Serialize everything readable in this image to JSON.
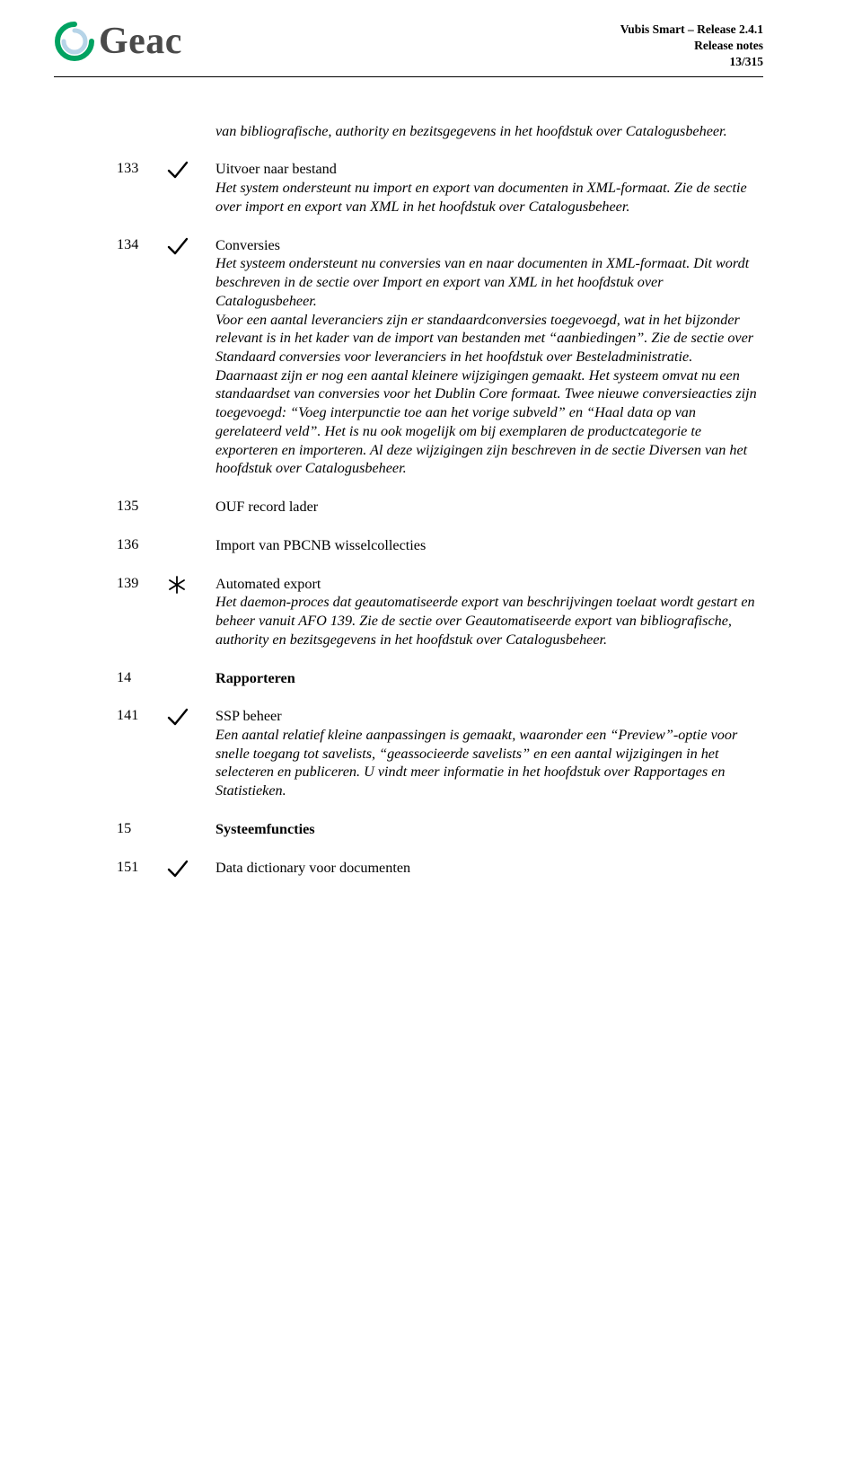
{
  "header": {
    "logo_text": "Geac",
    "meta_line1": "Vubis Smart – Release 2.4.1",
    "meta_line2": "Release notes",
    "meta_line3": "13/315"
  },
  "colors": {
    "text": "#000000",
    "logo_outer": "#00a261",
    "logo_inner": "#b0cfe6",
    "mark_stroke": "#000000",
    "background": "#ffffff"
  },
  "intro": "van bibliografische, authority en bezitsgegevens in het hoofdstuk over Catalogusbeheer.",
  "rows": [
    {
      "num": "133",
      "mark": "check",
      "title": "Uitvoer naar bestand",
      "title_bold": false,
      "desc": "Het system ondersteunt nu import en export van documenten in XML-formaat. Zie de sectie over import en export van XML in het hoofdstuk over Catalogusbeheer."
    },
    {
      "num": "134",
      "mark": "check",
      "title": "Conversies",
      "title_bold": false,
      "desc": "Het systeem ondersteunt nu conversies van en naar documenten in XML-formaat. Dit wordt beschreven in de sectie over Import en export van XML in het hoofdstuk over Catalogusbeheer.\nVoor een aantal leveranciers zijn er standaardconversies toegevoegd, wat in het bijzonder relevant is in het kader van de import van bestanden met “aanbiedingen”. Zie de sectie over Standaard conversies voor leveranciers in het hoofdstuk over Besteladministratie.\nDaarnaast zijn er nog een aantal kleinere wijzigingen gemaakt. Het systeem omvat nu een standaardset van conversies voor het Dublin Core formaat. Twee nieuwe conversieacties zijn toegevoegd: “Voeg interpunctie toe aan het vorige subveld” en “Haal data op van gerelateerd veld”. Het is nu ook mogelijk om bij exemplaren de productcategorie te exporteren en importeren. Al deze wijzigingen zijn beschreven in de sectie Diversen van het hoofdstuk over Catalogusbeheer."
    },
    {
      "num": "135",
      "mark": "",
      "title": "OUF record lader",
      "title_bold": false,
      "desc": ""
    },
    {
      "num": "136",
      "mark": "",
      "title": "Import van PBCNB wisselcollecties",
      "title_bold": false,
      "desc": ""
    },
    {
      "num": "139",
      "mark": "star",
      "title": "Automated export",
      "title_bold": false,
      "desc": "Het daemon-proces dat geautomatiseerde export van beschrijvingen toelaat wordt gestart en beheer vanuit AFO 139. Zie de sectie over Geautomatiseerde export van bibliografische, authority en bezitsgegevens in het hoofdstuk over Catalogusbeheer."
    },
    {
      "num": "14",
      "mark": "",
      "title": "Rapporteren",
      "title_bold": true,
      "desc": ""
    },
    {
      "num": "141",
      "mark": "check",
      "title": "SSP beheer",
      "title_bold": false,
      "desc": "Een aantal relatief kleine aanpassingen is gemaakt, waaronder een “Preview”-optie voor snelle toegang tot savelists, “geassocieerde savelists” en een aantal wijzigingen in het selecteren en publiceren. U vindt meer informatie in het hoofdstuk over Rapportages en Statistieken."
    },
    {
      "num": "15",
      "mark": "",
      "title": "Systeemfuncties",
      "title_bold": true,
      "desc": ""
    },
    {
      "num": "151",
      "mark": "check",
      "title": "Data dictionary voor documenten",
      "title_bold": false,
      "desc": ""
    }
  ]
}
